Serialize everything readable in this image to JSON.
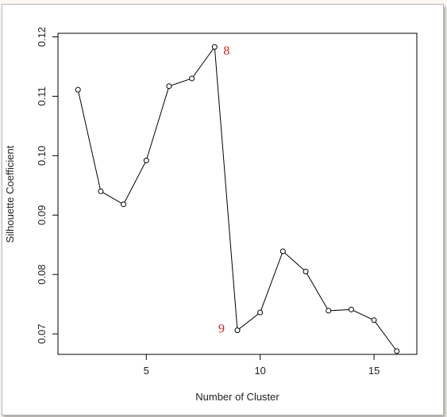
{
  "chart_data": {
    "type": "line",
    "title": "",
    "xlabel": "Number of Cluster",
    "ylabel": "Silhouette Coefficient",
    "xlim": [
      1,
      17
    ],
    "ylim": [
      0.066,
      0.12
    ],
    "xticks": [
      5,
      10,
      15
    ],
    "yticks": [
      0.07,
      0.08,
      0.09,
      0.1,
      0.11,
      0.12
    ],
    "ytick_labels": [
      "0.07",
      "0.08",
      "0.09",
      "0.10",
      "0.11",
      "0.12"
    ],
    "grid": false,
    "marker": "open-circle",
    "line_color": "#000000",
    "x": [
      2,
      3,
      4,
      5,
      6,
      7,
      8,
      9,
      10,
      11,
      12,
      13,
      14,
      15,
      16
    ],
    "y": [
      0.1111,
      0.094,
      0.0918,
      0.0992,
      0.1117,
      0.113,
      0.1183,
      0.0706,
      0.0736,
      0.0839,
      0.0805,
      0.0739,
      0.0741,
      0.0723,
      0.0671
    ],
    "annotations": [
      {
        "text": "8",
        "x": 8,
        "y": 0.1183,
        "color": "#e0201c"
      },
      {
        "text": "9",
        "x": 9,
        "y": 0.0706,
        "color": "#e0201c"
      }
    ]
  }
}
